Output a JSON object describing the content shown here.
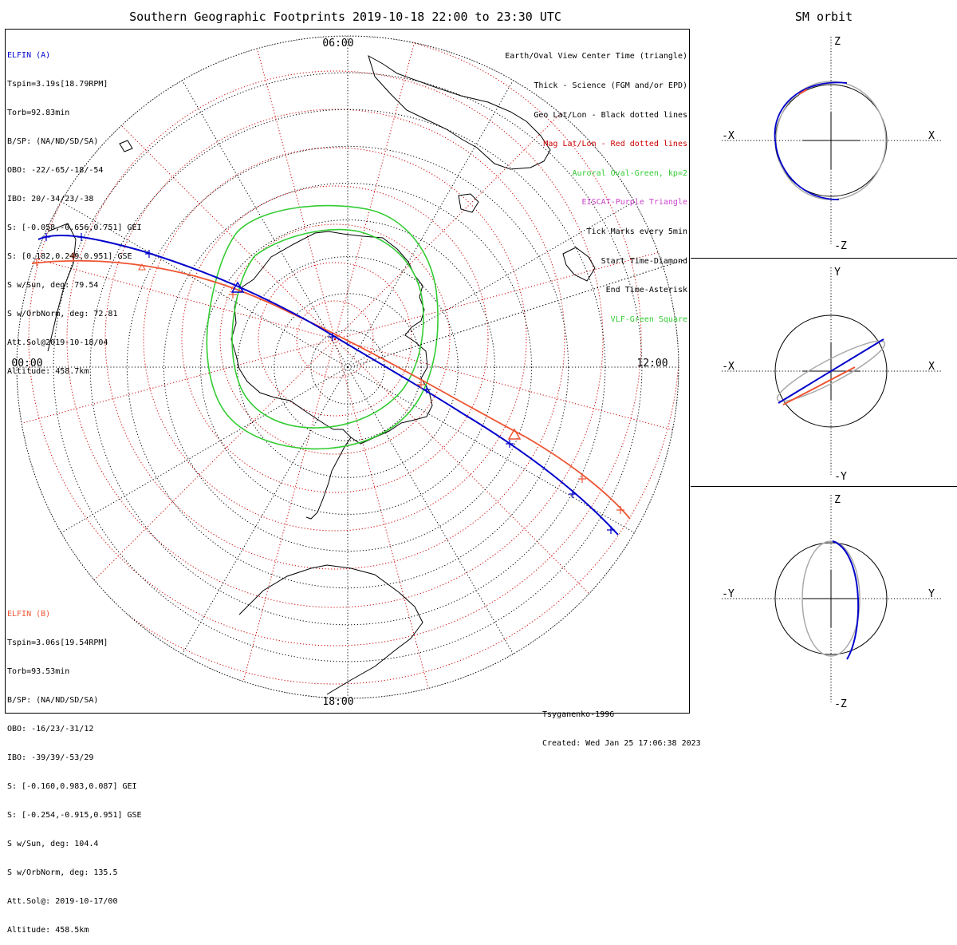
{
  "title": "Southern Geographic Footprints 2019-10-18 22:00 to 23:30 UTC",
  "sm_title": "SM orbit",
  "colors": {
    "elfin_a": "#0000cc",
    "elfin_b": "#ee5533",
    "geo_grid": "#000000",
    "mag_grid": "#cc0000",
    "auroral_oval": "#33cc33",
    "eiscat": "#cc44cc",
    "vlf": "#33cc33",
    "orbit_back": "#aaaaaa"
  },
  "map_labels": {
    "top": "06:00",
    "left": "00:00",
    "right": "12:00",
    "bottom": "18:00"
  },
  "elfin_a": {
    "name": "ELFIN (A)",
    "lines": [
      "Tspin=3.19s[18.79RPM]",
      "Torb=92.83min",
      "B/SP: (NA/ND/SD/SA)",
      "OBO: -22/-65/-18/-54",
      "IBO: 20/-34/23/-38",
      "S: [-0.058,-0.656,0.751] GEI",
      "S: [0.182,0.249,0.951] GSE",
      "S w/Sun, deg: 79.54",
      "S w/OrbNorm, deg: 72.81",
      "Att.Sol@2019-10-18/04",
      "Altitude: 458.7km"
    ]
  },
  "elfin_b": {
    "name": "ELFIN (B)",
    "lines": [
      "Tspin=3.06s[19.54RPM]",
      "Torb=93.53min",
      "B/SP: (NA/ND/SD/SA)",
      "OBO: -16/23/-31/12",
      "IBO: -39/39/-53/29",
      "S: [-0.160,0.983,0.087] GEI",
      "S: [-0.254,-0.915,0.951] GSE",
      "S w/Sun, deg: 104.4",
      "S w/OrbNorm, deg: 135.5",
      "Att.Sol@: 2019-10-17/00",
      "Altitude: 458.5km"
    ]
  },
  "legend": [
    {
      "text": "Earth/Oval View Center Time (triangle)",
      "color": "#000000"
    },
    {
      "text": "Thick - Science (FGM and/or EPD)",
      "color": "#000000"
    },
    {
      "text": "Geo Lat/Lon - Black dotted lines",
      "color": "#000000"
    },
    {
      "text": "Mag Lat/Lon - Red dotted lines",
      "color": "#cc0000"
    },
    {
      "text": "Auroral Oval-Green, kp=2",
      "color": "#33cc33"
    },
    {
      "text": "EISCAT-Purple Triangle",
      "color": "#cc44cc"
    },
    {
      "text": "Tick Marks every 5min",
      "color": "#000000"
    },
    {
      "text": "Start Time-Diamond",
      "color": "#000000"
    },
    {
      "text": "End Time-Asterisk",
      "color": "#000000"
    },
    {
      "text": "VLF-Green Square",
      "color": "#33cc33"
    }
  ],
  "credits": [
    "Tsyganenko-1996",
    "Created: Wed Jan 25 17:06:38 2023"
  ],
  "sm_panels": [
    {
      "name": "xz",
      "top": "Z",
      "bottom": "-Z",
      "left": "-X",
      "right": "X"
    },
    {
      "name": "xy",
      "top": "Y",
      "bottom": "-Y",
      "left": "-X",
      "right": "X"
    },
    {
      "name": "yz",
      "top": "Z",
      "bottom": "-Z",
      "left": "-Y",
      "right": "Y"
    }
  ]
}
